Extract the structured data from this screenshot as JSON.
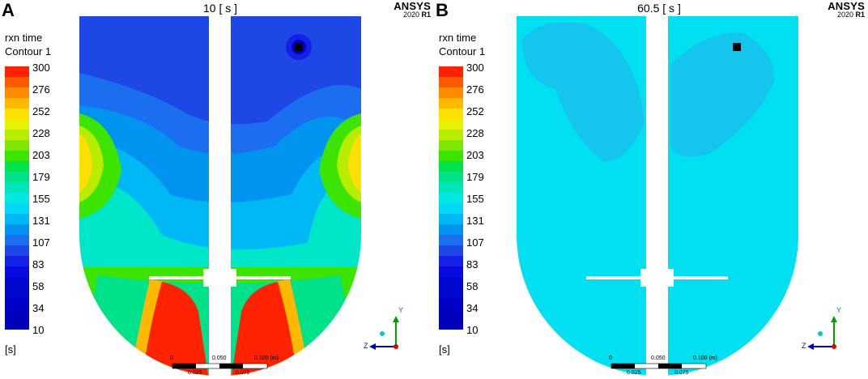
{
  "panels": [
    {
      "letter": "A",
      "time": "10 [ s ]",
      "brand": "ANSYS",
      "version": "2020",
      "release": "R1",
      "legend": {
        "title_line1": "rxn time",
        "title_line2": "Contour 1",
        "ticks": [
          "300",
          "276",
          "252",
          "228",
          "203",
          "179",
          "155",
          "131",
          "107",
          "83",
          "58",
          "34",
          "10"
        ],
        "unit": "[s]"
      },
      "scale": {
        "top": [
          "0",
          "0.050",
          "0.100  (m)"
        ],
        "bottom": [
          "0.025",
          "0.075"
        ]
      },
      "axes": {
        "y": "Y",
        "z": "Z"
      }
    },
    {
      "letter": "B",
      "time": "60.5 [ s ]",
      "brand": "ANSYS",
      "version": "2020",
      "release": "R1",
      "legend": {
        "title_line1": "rxn time",
        "title_line2": "Contour 1",
        "ticks": [
          "300",
          "276",
          "252",
          "228",
          "203",
          "179",
          "155",
          "131",
          "107",
          "83",
          "58",
          "34",
          "10"
        ],
        "unit": "[s]"
      },
      "scale": {
        "top": [
          "0",
          "0.050",
          "0.100  (m)"
        ],
        "bottom": [
          "0.025",
          "0.075"
        ]
      },
      "axes": {
        "y": "Y",
        "z": "Z"
      }
    }
  ],
  "colors": {
    "legend_bands": [
      "#ff2200",
      "#ff5a00",
      "#ff8c00",
      "#ffb800",
      "#ffe000",
      "#e6f200",
      "#b8ec00",
      "#7ee600",
      "#3ce400",
      "#00e24a",
      "#00e28a",
      "#00e6b8",
      "#00e8e0",
      "#00d8f6",
      "#00b8f6",
      "#0094f0",
      "#1c6ef0",
      "#1e48e6",
      "#1420e6",
      "#0a0ae0",
      "#0008d0",
      "#0008d0",
      "#0000c8",
      "#0000c0",
      "#0000b8"
    ],
    "panel_b_fill": "#00e0f0",
    "panel_b_dark": "#14c6ee"
  }
}
